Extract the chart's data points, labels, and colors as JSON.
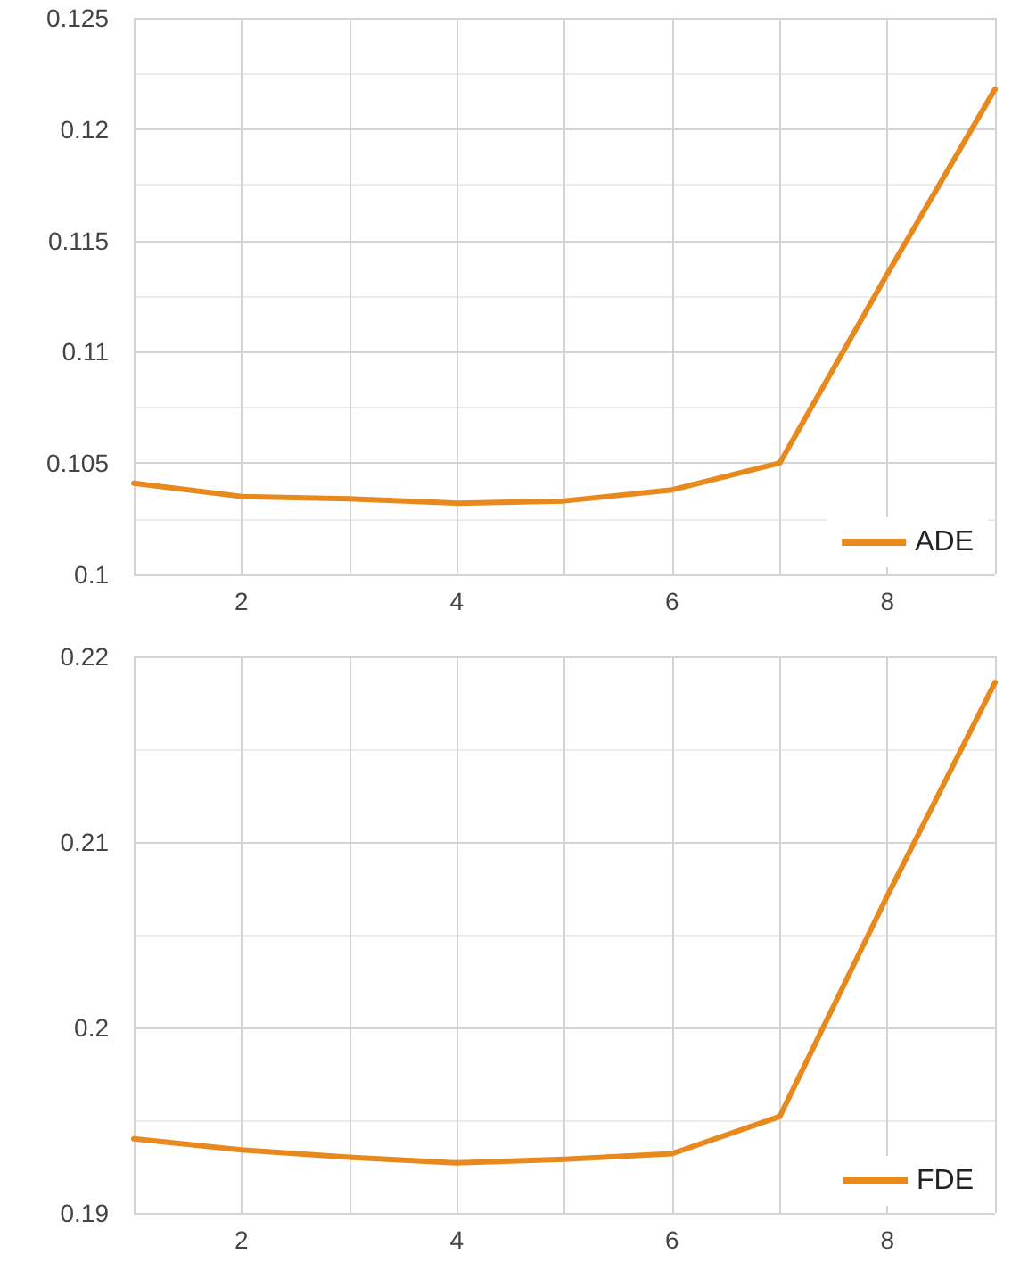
{
  "chart_data": [
    {
      "type": "line",
      "x": [
        1,
        2,
        3,
        4,
        5,
        6,
        7,
        8,
        9
      ],
      "xlim": [
        1,
        9
      ],
      "xticks": [
        2,
        4,
        6,
        8
      ],
      "ylim": [
        0.1,
        0.125
      ],
      "yticks": [
        0.1,
        0.105,
        0.11,
        0.115,
        0.12,
        0.125
      ],
      "grid": true,
      "legend": "bottom right",
      "marker": "none",
      "line_style": "solid",
      "series": [
        {
          "name": "ADE",
          "color": "#e8891e",
          "values": [
            0.1041,
            0.1035,
            0.1034,
            0.1032,
            0.1033,
            0.1038,
            0.105,
            0.1135,
            0.1218
          ]
        }
      ]
    },
    {
      "type": "line",
      "x": [
        1,
        2,
        3,
        4,
        5,
        6,
        7,
        8,
        9
      ],
      "xlim": [
        1,
        9
      ],
      "xticks": [
        2,
        4,
        6,
        8
      ],
      "ylim": [
        0.19,
        0.22
      ],
      "yticks": [
        0.19,
        0.2,
        0.21,
        0.22
      ],
      "grid": true,
      "legend": "bottom right",
      "marker": "none",
      "line_style": "solid",
      "series": [
        {
          "name": "FDE",
          "color": "#e8891e",
          "values": [
            0.194,
            0.1934,
            0.193,
            0.1927,
            0.1929,
            0.1932,
            0.1952,
            0.2071,
            0.2186
          ]
        }
      ]
    }
  ]
}
